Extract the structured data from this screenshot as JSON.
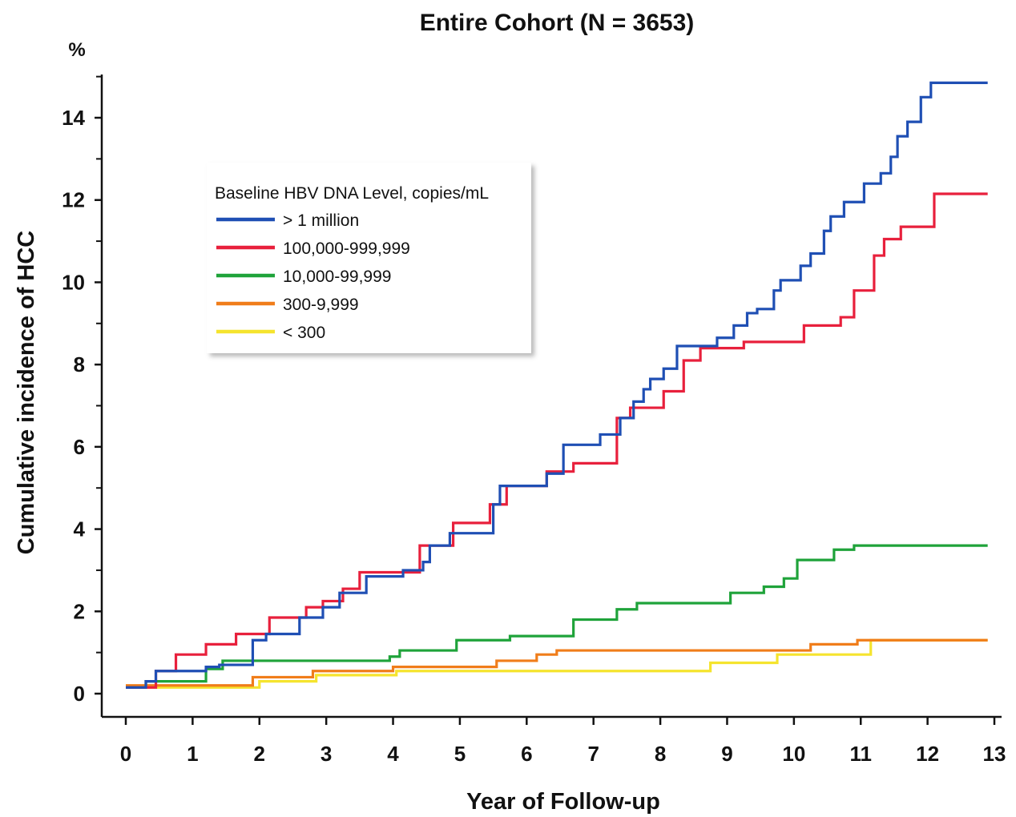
{
  "chart_data": {
    "type": "line",
    "step": true,
    "title": "Entire Cohort (N = 3653)",
    "xlabel": "Year of Follow-up",
    "ylabel": "Cumulative incidence of HCC",
    "yunit": "%",
    "xlim": [
      0,
      13
    ],
    "ylim": [
      -0.5,
      15
    ],
    "xticks": [
      0,
      1,
      2,
      3,
      4,
      5,
      6,
      7,
      8,
      9,
      10,
      11,
      12,
      13
    ],
    "yticks": [
      0,
      2,
      4,
      6,
      8,
      10,
      12,
      14
    ],
    "grid": false,
    "legend": {
      "title": "Baseline HBV DNA Level, copies/mL",
      "position": "upper-left"
    },
    "series": [
      {
        "name": "> 1 million",
        "color": "#1f4fb4",
        "points": [
          [
            0,
            0.15
          ],
          [
            0.3,
            0.3
          ],
          [
            0.45,
            0.55
          ],
          [
            0.85,
            0.55
          ],
          [
            1.2,
            0.65
          ],
          [
            1.4,
            0.7
          ],
          [
            1.9,
            1.3
          ],
          [
            2.1,
            1.45
          ],
          [
            2.6,
            1.85
          ],
          [
            2.95,
            2.1
          ],
          [
            3.2,
            2.45
          ],
          [
            3.6,
            2.85
          ],
          [
            4.15,
            3.0
          ],
          [
            4.45,
            3.2
          ],
          [
            4.55,
            3.6
          ],
          [
            4.85,
            3.9
          ],
          [
            5.5,
            4.6
          ],
          [
            5.6,
            5.05
          ],
          [
            6.3,
            5.35
          ],
          [
            6.55,
            6.05
          ],
          [
            7.1,
            6.3
          ],
          [
            7.4,
            6.7
          ],
          [
            7.6,
            7.1
          ],
          [
            7.75,
            7.4
          ],
          [
            7.85,
            7.65
          ],
          [
            8.05,
            7.9
          ],
          [
            8.25,
            8.45
          ],
          [
            8.85,
            8.65
          ],
          [
            9.1,
            8.95
          ],
          [
            9.3,
            9.25
          ],
          [
            9.45,
            9.35
          ],
          [
            9.7,
            9.8
          ],
          [
            9.8,
            10.05
          ],
          [
            10.1,
            10.4
          ],
          [
            10.25,
            10.7
          ],
          [
            10.45,
            11.25
          ],
          [
            10.55,
            11.6
          ],
          [
            10.75,
            11.95
          ],
          [
            11.05,
            12.4
          ],
          [
            11.3,
            12.65
          ],
          [
            11.45,
            13.05
          ],
          [
            11.55,
            13.55
          ],
          [
            11.7,
            13.9
          ],
          [
            11.9,
            14.5
          ],
          [
            12.05,
            14.85
          ],
          [
            12.9,
            14.85
          ]
        ]
      },
      {
        "name": "100,000-999,999",
        "color": "#e8203c",
        "points": [
          [
            0,
            0.15
          ],
          [
            0.45,
            0.55
          ],
          [
            0.75,
            0.95
          ],
          [
            1.2,
            1.2
          ],
          [
            1.65,
            1.45
          ],
          [
            2.15,
            1.85
          ],
          [
            2.7,
            2.1
          ],
          [
            2.95,
            2.25
          ],
          [
            3.25,
            2.55
          ],
          [
            3.5,
            2.95
          ],
          [
            4.4,
            3.6
          ],
          [
            4.9,
            4.15
          ],
          [
            5.45,
            4.6
          ],
          [
            5.7,
            5.05
          ],
          [
            6.3,
            5.4
          ],
          [
            6.7,
            5.6
          ],
          [
            7.35,
            6.7
          ],
          [
            7.55,
            6.95
          ],
          [
            8.05,
            7.35
          ],
          [
            8.35,
            8.1
          ],
          [
            8.6,
            8.4
          ],
          [
            9.25,
            8.55
          ],
          [
            10.15,
            8.95
          ],
          [
            10.7,
            9.15
          ],
          [
            10.9,
            9.8
          ],
          [
            11.2,
            10.65
          ],
          [
            11.35,
            11.05
          ],
          [
            11.6,
            11.35
          ],
          [
            12.1,
            12.15
          ],
          [
            12.9,
            12.15
          ]
        ]
      },
      {
        "name": "10,000-99,999",
        "color": "#1fa33a",
        "points": [
          [
            0,
            0.15
          ],
          [
            0.3,
            0.3
          ],
          [
            1.2,
            0.6
          ],
          [
            1.45,
            0.8
          ],
          [
            3.95,
            0.9
          ],
          [
            4.1,
            1.05
          ],
          [
            4.95,
            1.3
          ],
          [
            5.75,
            1.4
          ],
          [
            6.7,
            1.8
          ],
          [
            7.35,
            2.05
          ],
          [
            7.65,
            2.2
          ],
          [
            9.05,
            2.45
          ],
          [
            9.55,
            2.6
          ],
          [
            9.85,
            2.8
          ],
          [
            10.05,
            3.25
          ],
          [
            10.6,
            3.5
          ],
          [
            10.9,
            3.6
          ],
          [
            12.9,
            3.6
          ]
        ]
      },
      {
        "name": "300-9,999",
        "color": "#f07d1a",
        "points": [
          [
            0,
            0.2
          ],
          [
            1.9,
            0.4
          ],
          [
            2.8,
            0.55
          ],
          [
            4.0,
            0.65
          ],
          [
            5.55,
            0.8
          ],
          [
            6.15,
            0.95
          ],
          [
            6.45,
            1.05
          ],
          [
            10.25,
            1.2
          ],
          [
            10.95,
            1.3
          ],
          [
            12.9,
            1.3
          ]
        ]
      },
      {
        "name": "< 300",
        "color": "#f5e42e",
        "points": [
          [
            0,
            0.15
          ],
          [
            2.0,
            0.3
          ],
          [
            2.85,
            0.45
          ],
          [
            4.05,
            0.55
          ],
          [
            8.75,
            0.75
          ],
          [
            9.75,
            0.95
          ],
          [
            11.15,
            1.3
          ],
          [
            12.9,
            1.3
          ]
        ]
      }
    ]
  }
}
